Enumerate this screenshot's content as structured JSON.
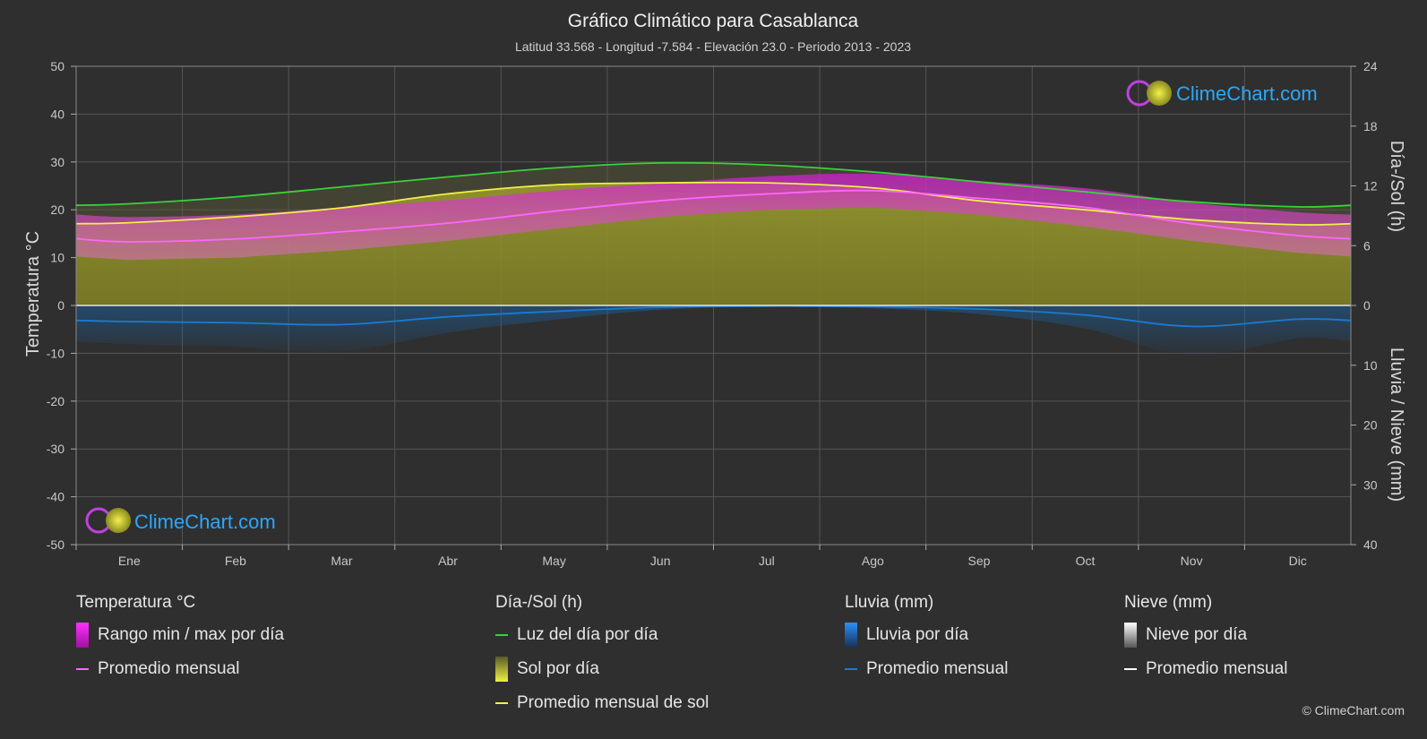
{
  "chart_data": {
    "type": "area",
    "title": "Gráfico Climático para Casablanca",
    "subtitle": "Latitud 33.568 - Longitud -7.584 - Elevación 23.0 - Periodo 2013 - 2023",
    "left_axis_label": "Temperatura °C",
    "right_axis_top_label": "Día-/Sol (h)",
    "right_axis_bottom_label": "Lluvia / Nieve (mm)",
    "months": [
      "Ene",
      "Feb",
      "Mar",
      "Abr",
      "May",
      "Jun",
      "Jul",
      "Ago",
      "Sep",
      "Oct",
      "Nov",
      "Dic"
    ],
    "left_ticks": [
      "50",
      "40",
      "30",
      "20",
      "10",
      "0",
      "-10",
      "-20",
      "-30",
      "-40",
      "-50"
    ],
    "right_ticks_top": [
      "24",
      "18",
      "12",
      "6",
      "0"
    ],
    "right_ticks_bottom": [
      "10",
      "20",
      "30",
      "40"
    ],
    "temperature_ylim": [
      -50,
      50
    ],
    "sun_ylim": [
      0,
      24
    ],
    "precip_ylim": [
      0,
      40
    ],
    "temp_mean_monthly": [
      13.3,
      13.9,
      15.4,
      17.2,
      19.7,
      21.9,
      23.3,
      24.0,
      22.4,
      20.5,
      17.1,
      14.6
    ],
    "temp_max_monthly": [
      18.5,
      19.0,
      20.5,
      22.0,
      24.0,
      25.5,
      27.0,
      27.5,
      26.0,
      24.5,
      21.5,
      19.5
    ],
    "temp_min_monthly": [
      9.5,
      10.0,
      11.5,
      13.5,
      16.0,
      18.5,
      20.0,
      20.5,
      19.0,
      16.5,
      13.5,
      11.0
    ],
    "daylight_hours": [
      10.2,
      10.9,
      11.9,
      12.9,
      13.8,
      14.3,
      14.1,
      13.4,
      12.4,
      11.4,
      10.4,
      9.9
    ],
    "sunshine_hours": [
      8.3,
      8.9,
      9.8,
      11.2,
      12.1,
      12.3,
      12.3,
      11.8,
      10.5,
      9.6,
      8.6,
      8.1
    ],
    "rain_mean_mm": [
      2.7,
      2.9,
      3.2,
      1.9,
      1.0,
      0.3,
      0.1,
      0.2,
      0.6,
      1.6,
      3.5,
      2.3
    ],
    "snow_mean_mm": [
      0,
      0,
      0,
      0,
      0,
      0,
      0,
      0,
      0,
      0,
      0,
      0
    ],
    "colors": {
      "temp_range": "#d21ed2",
      "temp_mean": "#ff66ff",
      "daylight": "#39d23a",
      "sunshine_fill": "#8c8c2a",
      "sunshine_mean": "#f0f04a",
      "rain": "#1a7ad4",
      "snow": "#ffffff"
    }
  },
  "logo_text": "ClimeChart.com",
  "legend": {
    "temperature": {
      "header": "Temperatura °C",
      "range": "Rango min / max por día",
      "mean": "Promedio mensual"
    },
    "sun": {
      "header": "Día-/Sol (h)",
      "daylight": "Luz del día por día",
      "sunshine": "Sol por día",
      "sun_mean": "Promedio mensual de sol"
    },
    "rain": {
      "header": "Lluvia (mm)",
      "per_day": "Lluvia por día",
      "mean": "Promedio mensual"
    },
    "snow": {
      "header": "Nieve (mm)",
      "per_day": "Nieve por día",
      "mean": "Promedio mensual"
    }
  },
  "copyright": "© ClimeChart.com"
}
